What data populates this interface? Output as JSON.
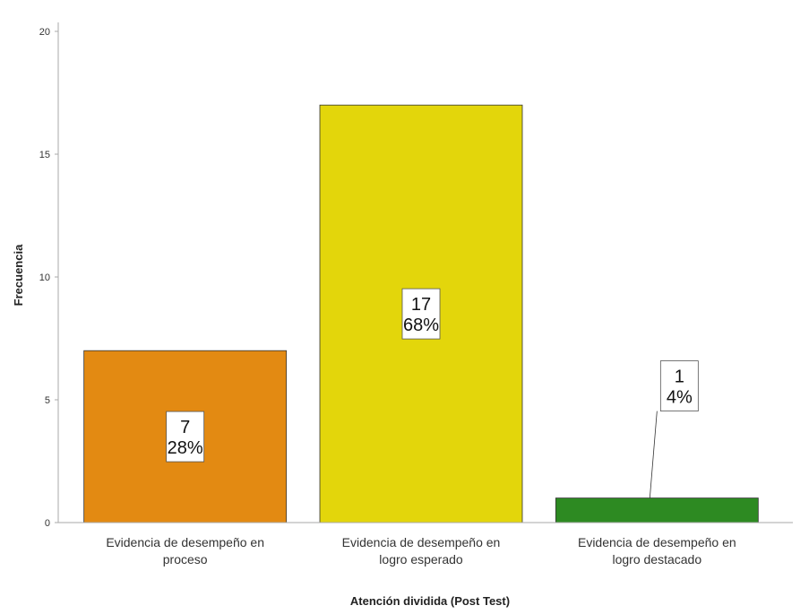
{
  "chart_data": {
    "type": "bar",
    "xlabel": "Atención dividida (Post Test)",
    "ylabel": "Frecuencia",
    "ylim": [
      0,
      20
    ],
    "yticks": [
      "0",
      "5",
      "10",
      "15",
      "20"
    ],
    "categories": [
      [
        "Evidencia de desempeño en",
        "proceso"
      ],
      [
        "Evidencia de desempeño en",
        "logro esperado"
      ],
      [
        "Evidencia de desempeño en",
        "logro destacado"
      ]
    ],
    "values": [
      7,
      17,
      1
    ],
    "percent_labels": [
      "28%",
      "68%",
      "4%"
    ],
    "value_labels": [
      "7",
      "17",
      "1"
    ],
    "colors": [
      "#E38A12",
      "#E3D60B",
      "#2D8A22"
    ],
    "grid": false,
    "legend": "none"
  }
}
